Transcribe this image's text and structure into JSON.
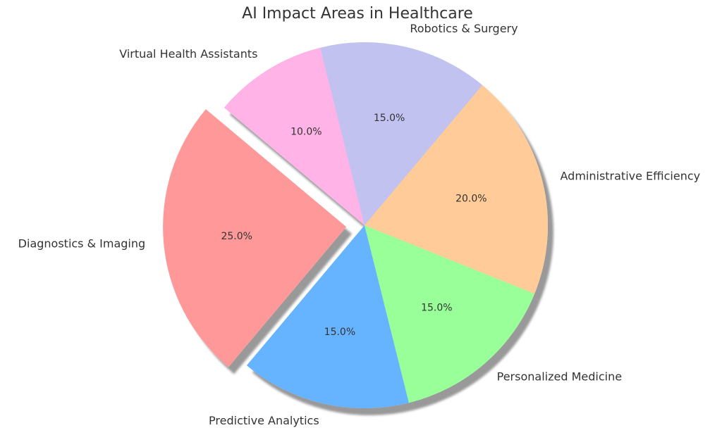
{
  "chart_data": {
    "type": "pie",
    "title": "AI Impact Areas in Healthcare",
    "categories": [
      "Diagnostics & Imaging",
      "Predictive Analytics",
      "Personalized Medicine",
      "Administrative Efficiency",
      "Robotics & Surgery",
      "Virtual Health Assistants"
    ],
    "values": [
      25,
      15,
      15,
      20,
      15,
      10
    ],
    "value_labels": [
      "25.0%",
      "15.0%",
      "15.0%",
      "20.0%",
      "15.0%",
      "10.0%"
    ],
    "colors": [
      "#ff9999",
      "#66b3ff",
      "#99ff99",
      "#ffcc99",
      "#c2c2f0",
      "#ffb3e6"
    ],
    "explode": [
      0.1,
      0,
      0,
      0,
      0,
      0
    ],
    "start_angle": 140,
    "shadow": true
  }
}
